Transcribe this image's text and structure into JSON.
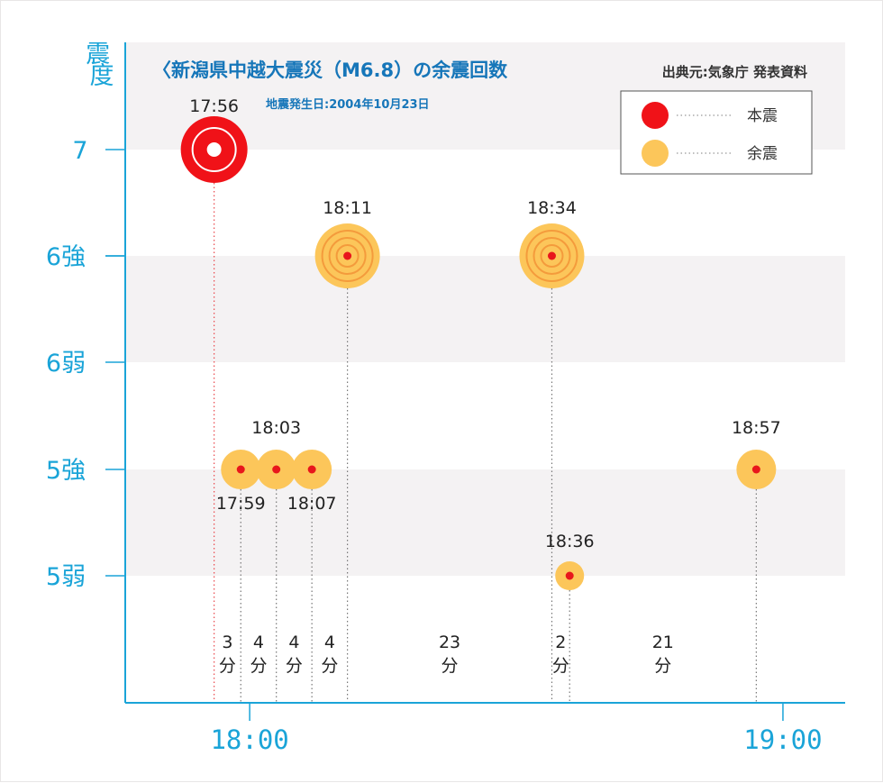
{
  "chart_data": {
    "type": "scatter",
    "title": "〈新潟県中越大震災（M6.8）の余震回数",
    "subtitle": "地震発生日:2004年10月23日",
    "source": "出典元:気象庁 発表資料",
    "ylabel": "震度",
    "y_levels": [
      "5弱",
      "5強",
      "6弱",
      "6強",
      "7"
    ],
    "y_ticks_extra": [
      6.5
    ],
    "x_ticks": [
      {
        "minutes": 0,
        "label": "18:00"
      },
      {
        "minutes": 60,
        "label": "19:00"
      }
    ],
    "xlim_minutes": [
      -14,
      67
    ],
    "legend": {
      "placement": "top-right",
      "items": [
        {
          "name": "本震",
          "color": "#f01218"
        },
        {
          "name": "余震",
          "color": "#fcc65a"
        }
      ]
    },
    "points": [
      {
        "time": "17:56",
        "minutes": -4,
        "intensity": "7",
        "type": "本震"
      },
      {
        "time": "17:59",
        "minutes": -1,
        "intensity": "5強",
        "type": "余震"
      },
      {
        "time": "18:03",
        "minutes": 3,
        "intensity": "5強",
        "type": "余震"
      },
      {
        "time": "18:07",
        "minutes": 7,
        "intensity": "5強",
        "type": "余震"
      },
      {
        "time": "18:11",
        "minutes": 11,
        "intensity": "6強",
        "type": "余震"
      },
      {
        "time": "18:34",
        "minutes": 34,
        "intensity": "6強",
        "type": "余震"
      },
      {
        "time": "18:36",
        "minutes": 36,
        "intensity": "5弱",
        "type": "余震"
      },
      {
        "time": "18:57",
        "minutes": 57,
        "intensity": "5強",
        "type": "余震"
      }
    ],
    "intervals": [
      {
        "value": "3",
        "unit": "分"
      },
      {
        "value": "4",
        "unit": "分"
      },
      {
        "value": "4",
        "unit": "分"
      },
      {
        "value": "4",
        "unit": "分"
      },
      {
        "value": "23",
        "unit": "分"
      },
      {
        "value": "2",
        "unit": "分"
      },
      {
        "value": "21",
        "unit": "分"
      }
    ],
    "colors": {
      "axis": "#1aa4d8",
      "band": "#f4f2f3",
      "main_quake": "#f01218",
      "aftershock": "#fcc65a",
      "aftershock_ring": "#f49b3c",
      "marker_dot": "#e8161c"
    }
  }
}
